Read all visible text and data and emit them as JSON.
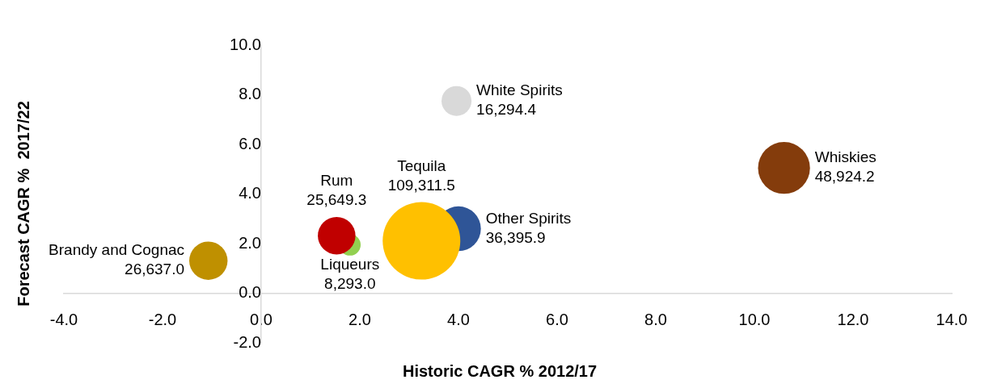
{
  "chart_data": {
    "type": "bubble",
    "xlabel": "Historic CAGR % 2012/17",
    "ylabel": "Forecast CAGR %  2017/22",
    "xlim": [
      -4,
      14
    ],
    "xticks": [
      {
        "value": -4,
        "label": "-4.0"
      },
      {
        "value": -2,
        "label": "-2.0"
      },
      {
        "value": 0,
        "label": "0.0"
      },
      {
        "value": 2,
        "label": "2.0"
      },
      {
        "value": 4,
        "label": "4.0"
      },
      {
        "value": 6,
        "label": "6.0"
      },
      {
        "value": 8,
        "label": "8.0"
      },
      {
        "value": 10,
        "label": "10.0"
      },
      {
        "value": 12,
        "label": "12.0"
      },
      {
        "value": 14,
        "label": "14.0"
      }
    ],
    "ylim": [
      -2,
      10
    ],
    "yticks": [
      {
        "value": -2,
        "label": "-2.0"
      },
      {
        "value": 0,
        "label": "0.0"
      },
      {
        "value": 2,
        "label": "2.0"
      },
      {
        "value": 4,
        "label": "4.0"
      },
      {
        "value": 6,
        "label": "6.0"
      },
      {
        "value": 8,
        "label": "8.0"
      },
      {
        "value": 10,
        "label": "10.0"
      }
    ],
    "grid": false,
    "series": [
      {
        "name": "Brandy and Cognac",
        "color": "#bf9000",
        "x": [
          -1.07
        ],
        "values": [
          1.31
        ],
        "sizes": [
          26637.0
        ],
        "value_labels": [
          "26,637.0"
        ]
      },
      {
        "name": "Rum",
        "color": "#c00000",
        "x": [
          1.53
        ],
        "values": [
          2.32
        ],
        "sizes": [
          25649.3
        ],
        "value_labels": [
          "25,649.3"
        ]
      },
      {
        "name": "Liqueurs",
        "color": "#92d050",
        "x": [
          1.8
        ],
        "values": [
          1.95
        ],
        "sizes": [
          8293.0
        ],
        "value_labels": [
          "8,293.0"
        ]
      },
      {
        "name": "Tequila",
        "color": "#ffc000",
        "x": [
          3.25
        ],
        "values": [
          2.11
        ],
        "sizes": [
          109311.5
        ],
        "value_labels": [
          "109,311.5"
        ]
      },
      {
        "name": "Other Spirits",
        "color": "#2f5597",
        "x": [
          4.0
        ],
        "values": [
          2.6
        ],
        "sizes": [
          36395.9
        ],
        "value_labels": [
          "36,395.9"
        ]
      },
      {
        "name": "White Spirits",
        "color": "#d9d9d9",
        "x": [
          3.96
        ],
        "values": [
          7.75
        ],
        "sizes": [
          16294.4
        ],
        "value_labels": [
          "16,294.4"
        ]
      },
      {
        "name": "Whiskies",
        "color": "#843c0c",
        "x": [
          10.6
        ],
        "values": [
          5.05
        ],
        "sizes": [
          48924.2
        ],
        "value_labels": [
          "48,924.2"
        ]
      }
    ]
  }
}
